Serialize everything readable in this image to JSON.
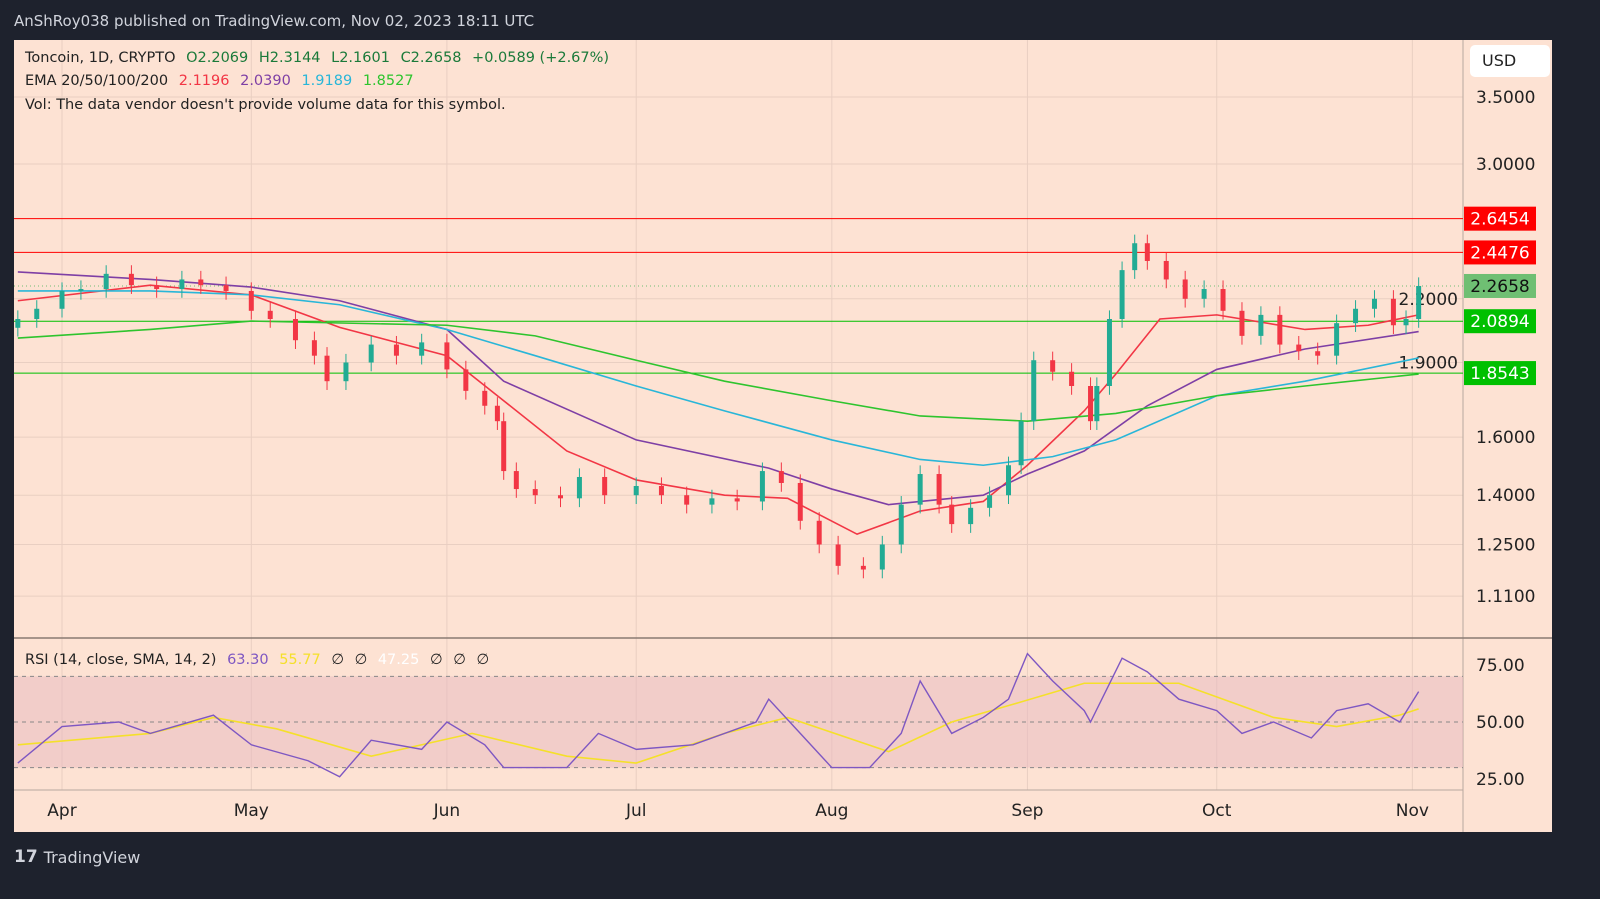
{
  "header": {
    "publisher": "AnShRoy038 published on TradingView.com, Nov 02, 2023 18:11 UTC"
  },
  "legend": {
    "symbol": "Toncoin, 1D, CRYPTO",
    "open": "O2.2069",
    "high": "H2.3144",
    "low": "L2.1601",
    "close": "C2.2658",
    "change": "+0.0589 (+2.67%)",
    "ema_label": "EMA 20/50/100/200",
    "ema20": "2.1196",
    "ema50": "2.0390",
    "ema100": "1.9189",
    "ema200": "1.8527",
    "vol": "Vol: The data vendor doesn't provide volume data for this symbol.",
    "rsi_label": "RSI (14, close, SMA, 14, 2)",
    "rsi": "63.30",
    "rsi_sma": "55.77",
    "rsi_extra1": "∅",
    "rsi_extra2": "∅",
    "rsi_extra3": "47.25",
    "rsi_extra4": "∅",
    "rsi_extra5": "∅",
    "rsi_extra6": "∅"
  },
  "currency": "USD",
  "footer": {
    "brand": "TradingView"
  },
  "colors": {
    "up": "#22ab94",
    "down": "#f23645",
    "ema20": "#f23645",
    "ema50": "#7e3fa5",
    "ema100": "#29b6d8",
    "ema200": "#2ec42e",
    "rsi": "#7e57c2",
    "rsi_sma": "#f5e02a",
    "bg": "#fde2d3"
  },
  "chart_data": {
    "type": "candlestick",
    "scale": "log",
    "grid": true,
    "y_ticks": [
      3.5,
      3.0,
      2.2,
      1.9,
      1.6,
      1.4,
      1.25,
      1.11
    ],
    "y_tick_labels": [
      "3.5000",
      "3.0000",
      "2.2000",
      "1.9000",
      "1.6000",
      "1.4000",
      "1.2500",
      "1.1100"
    ],
    "x_ticks": [
      {
        "date": "2023-04-01",
        "label": "Apr"
      },
      {
        "date": "2023-05-01",
        "label": "May"
      },
      {
        "date": "2023-06-01",
        "label": "Jun"
      },
      {
        "date": "2023-07-01",
        "label": "Jul"
      },
      {
        "date": "2023-08-01",
        "label": "Aug"
      },
      {
        "date": "2023-09-01",
        "label": "Sep"
      },
      {
        "date": "2023-10-01",
        "label": "Oct"
      },
      {
        "date": "2023-11-01",
        "label": "Nov"
      }
    ],
    "closes": [
      [
        "2023-03-25",
        2.1
      ],
      [
        "2023-03-28",
        2.15
      ],
      [
        "2023-04-01",
        2.24
      ],
      [
        "2023-04-04",
        2.25
      ],
      [
        "2023-04-08",
        2.33
      ],
      [
        "2023-04-12",
        2.27
      ],
      [
        "2023-04-16",
        2.25
      ],
      [
        "2023-04-20",
        2.3
      ],
      [
        "2023-04-23",
        2.27
      ],
      [
        "2023-04-27",
        2.24
      ],
      [
        "2023-05-01",
        2.14
      ],
      [
        "2023-05-04",
        2.1
      ],
      [
        "2023-05-08",
        2.0
      ],
      [
        "2023-05-11",
        1.93
      ],
      [
        "2023-05-13",
        1.82
      ],
      [
        "2023-05-16",
        1.9
      ],
      [
        "2023-05-20",
        1.98
      ],
      [
        "2023-05-24",
        1.93
      ],
      [
        "2023-05-28",
        1.99
      ],
      [
        "2023-06-01",
        1.87
      ],
      [
        "2023-06-04",
        1.78
      ],
      [
        "2023-06-07",
        1.72
      ],
      [
        "2023-06-09",
        1.66
      ],
      [
        "2023-06-10",
        1.48
      ],
      [
        "2023-06-12",
        1.42
      ],
      [
        "2023-06-15",
        1.4
      ],
      [
        "2023-06-19",
        1.39
      ],
      [
        "2023-06-22",
        1.46
      ],
      [
        "2023-06-26",
        1.4
      ],
      [
        "2023-07-01",
        1.43
      ],
      [
        "2023-07-05",
        1.4
      ],
      [
        "2023-07-09",
        1.37
      ],
      [
        "2023-07-13",
        1.39
      ],
      [
        "2023-07-17",
        1.38
      ],
      [
        "2023-07-21",
        1.48
      ],
      [
        "2023-07-24",
        1.44
      ],
      [
        "2023-07-27",
        1.32
      ],
      [
        "2023-07-30",
        1.25
      ],
      [
        "2023-08-02",
        1.19
      ],
      [
        "2023-08-06",
        1.18
      ],
      [
        "2023-08-09",
        1.25
      ],
      [
        "2023-08-12",
        1.37
      ],
      [
        "2023-08-15",
        1.47
      ],
      [
        "2023-08-18",
        1.37
      ],
      [
        "2023-08-20",
        1.31
      ],
      [
        "2023-08-23",
        1.36
      ],
      [
        "2023-08-26",
        1.4
      ],
      [
        "2023-08-29",
        1.5
      ],
      [
        "2023-08-31",
        1.66
      ],
      [
        "2023-09-02",
        1.91
      ],
      [
        "2023-09-05",
        1.86
      ],
      [
        "2023-09-08",
        1.8
      ],
      [
        "2023-09-11",
        1.66
      ],
      [
        "2023-09-12",
        1.8
      ],
      [
        "2023-09-14",
        2.1
      ],
      [
        "2023-09-16",
        2.35
      ],
      [
        "2023-09-18",
        2.5
      ],
      [
        "2023-09-20",
        2.4
      ],
      [
        "2023-09-23",
        2.3
      ],
      [
        "2023-09-26",
        2.2
      ],
      [
        "2023-09-29",
        2.25
      ],
      [
        "2023-10-02",
        2.14
      ],
      [
        "2023-10-05",
        2.02
      ],
      [
        "2023-10-08",
        2.12
      ],
      [
        "2023-10-11",
        1.98
      ],
      [
        "2023-10-14",
        1.95
      ],
      [
        "2023-10-17",
        1.93
      ],
      [
        "2023-10-20",
        2.08
      ],
      [
        "2023-10-23",
        2.15
      ],
      [
        "2023-10-26",
        2.2
      ],
      [
        "2023-10-29",
        2.07
      ],
      [
        "2023-10-31",
        2.1
      ],
      [
        "2023-11-02",
        2.2658
      ]
    ],
    "ema": [
      {
        "name": "EMA 20",
        "color": "#f23645",
        "points": [
          [
            "2023-03-25",
            2.19
          ],
          [
            "2023-04-15",
            2.27
          ],
          [
            "2023-05-01",
            2.22
          ],
          [
            "2023-05-15",
            2.06
          ],
          [
            "2023-06-01",
            1.93
          ],
          [
            "2023-06-10",
            1.74
          ],
          [
            "2023-06-20",
            1.55
          ],
          [
            "2023-07-01",
            1.45
          ],
          [
            "2023-07-15",
            1.4
          ],
          [
            "2023-07-25",
            1.39
          ],
          [
            "2023-08-05",
            1.28
          ],
          [
            "2023-08-15",
            1.35
          ],
          [
            "2023-08-25",
            1.38
          ],
          [
            "2023-09-01",
            1.5
          ],
          [
            "2023-09-10",
            1.7
          ],
          [
            "2023-09-15",
            1.85
          ],
          [
            "2023-09-22",
            2.1
          ],
          [
            "2023-10-01",
            2.12
          ],
          [
            "2023-10-15",
            2.05
          ],
          [
            "2023-10-25",
            2.07
          ],
          [
            "2023-11-02",
            2.12
          ]
        ]
      },
      {
        "name": "EMA 50",
        "color": "#7e3fa5",
        "points": [
          [
            "2023-03-25",
            2.34
          ],
          [
            "2023-04-15",
            2.3
          ],
          [
            "2023-05-01",
            2.26
          ],
          [
            "2023-05-15",
            2.19
          ],
          [
            "2023-06-01",
            2.05
          ],
          [
            "2023-06-10",
            1.82
          ],
          [
            "2023-07-01",
            1.59
          ],
          [
            "2023-07-22",
            1.49
          ],
          [
            "2023-08-01",
            1.42
          ],
          [
            "2023-08-10",
            1.37
          ],
          [
            "2023-08-25",
            1.4
          ],
          [
            "2023-09-01",
            1.47
          ],
          [
            "2023-09-10",
            1.55
          ],
          [
            "2023-09-20",
            1.72
          ],
          [
            "2023-10-01",
            1.87
          ],
          [
            "2023-10-15",
            1.96
          ],
          [
            "2023-11-02",
            2.04
          ]
        ]
      },
      {
        "name": "EMA 100",
        "color": "#29b6d8",
        "points": [
          [
            "2023-03-25",
            2.24
          ],
          [
            "2023-04-15",
            2.24
          ],
          [
            "2023-05-01",
            2.22
          ],
          [
            "2023-05-15",
            2.17
          ],
          [
            "2023-06-01",
            2.05
          ],
          [
            "2023-06-15",
            1.93
          ],
          [
            "2023-07-01",
            1.8
          ],
          [
            "2023-07-15",
            1.7
          ],
          [
            "2023-08-01",
            1.59
          ],
          [
            "2023-08-15",
            1.52
          ],
          [
            "2023-08-25",
            1.5
          ],
          [
            "2023-09-05",
            1.53
          ],
          [
            "2023-09-15",
            1.59
          ],
          [
            "2023-10-01",
            1.76
          ],
          [
            "2023-10-15",
            1.82
          ],
          [
            "2023-11-02",
            1.92
          ]
        ]
      },
      {
        "name": "EMA 200",
        "color": "#2ec42e",
        "points": [
          [
            "2023-03-25",
            2.01
          ],
          [
            "2023-04-15",
            2.05
          ],
          [
            "2023-05-01",
            2.09
          ],
          [
            "2023-06-01",
            2.07
          ],
          [
            "2023-06-15",
            2.02
          ],
          [
            "2023-07-01",
            1.91
          ],
          [
            "2023-07-15",
            1.82
          ],
          [
            "2023-08-01",
            1.74
          ],
          [
            "2023-08-15",
            1.68
          ],
          [
            "2023-09-01",
            1.66
          ],
          [
            "2023-09-15",
            1.69
          ],
          [
            "2023-10-01",
            1.76
          ],
          [
            "2023-10-15",
            1.8
          ],
          [
            "2023-11-02",
            1.85
          ]
        ]
      }
    ],
    "levels": [
      {
        "value": 2.6454,
        "label": "2.6454",
        "color": "#ff0000"
      },
      {
        "value": 2.4476,
        "label": "2.4476",
        "color": "#ff0000"
      },
      {
        "value": 2.0894,
        "label": "2.0894",
        "color": "#00c000"
      },
      {
        "value": 1.8543,
        "label": "1.8543",
        "color": "#00c000"
      }
    ],
    "last_price": {
      "value": 2.2658,
      "label": "2.2658",
      "color": "#6fbf73"
    },
    "rsi": {
      "ylim": [
        25,
        75
      ],
      "band": [
        30,
        70
      ],
      "mid": 50,
      "tick_labels": [
        "75.00",
        "50.00",
        "25.00"
      ],
      "ticks": [
        75,
        50,
        25
      ],
      "values": [
        [
          "2023-03-25",
          32
        ],
        [
          "2023-04-01",
          48
        ],
        [
          "2023-04-10",
          50
        ],
        [
          "2023-04-15",
          45
        ],
        [
          "2023-04-25",
          53
        ],
        [
          "2023-05-01",
          40
        ],
        [
          "2023-05-10",
          33
        ],
        [
          "2023-05-15",
          26
        ],
        [
          "2023-05-20",
          42
        ],
        [
          "2023-05-28",
          38
        ],
        [
          "2023-06-01",
          50
        ],
        [
          "2023-06-07",
          40
        ],
        [
          "2023-06-10",
          30
        ],
        [
          "2023-06-20",
          30
        ],
        [
          "2023-06-25",
          45
        ],
        [
          "2023-07-01",
          38
        ],
        [
          "2023-07-10",
          40
        ],
        [
          "2023-07-20",
          50
        ],
        [
          "2023-07-22",
          60
        ],
        [
          "2023-07-27",
          45
        ],
        [
          "2023-08-01",
          30
        ],
        [
          "2023-08-07",
          30
        ],
        [
          "2023-08-12",
          45
        ],
        [
          "2023-08-15",
          68
        ],
        [
          "2023-08-20",
          45
        ],
        [
          "2023-08-25",
          52
        ],
        [
          "2023-08-29",
          60
        ],
        [
          "2023-09-01",
          80
        ],
        [
          "2023-09-05",
          68
        ],
        [
          "2023-09-10",
          55
        ],
        [
          "2023-09-11",
          50
        ],
        [
          "2023-09-16",
          78
        ],
        [
          "2023-09-20",
          72
        ],
        [
          "2023-09-25",
          60
        ],
        [
          "2023-10-01",
          55
        ],
        [
          "2023-10-05",
          45
        ],
        [
          "2023-10-10",
          50
        ],
        [
          "2023-10-16",
          43
        ],
        [
          "2023-10-20",
          55
        ],
        [
          "2023-10-25",
          58
        ],
        [
          "2023-10-30",
          50
        ],
        [
          "2023-11-02",
          63.3
        ]
      ],
      "sma": [
        [
          "2023-03-25",
          40
        ],
        [
          "2023-04-15",
          45
        ],
        [
          "2023-04-25",
          52
        ],
        [
          "2023-05-05",
          47
        ],
        [
          "2023-05-20",
          35
        ],
        [
          "2023-06-05",
          45
        ],
        [
          "2023-06-20",
          35
        ],
        [
          "2023-07-01",
          32
        ],
        [
          "2023-07-15",
          45
        ],
        [
          "2023-07-25",
          52
        ],
        [
          "2023-08-10",
          37
        ],
        [
          "2023-08-20",
          50
        ],
        [
          "2023-08-30",
          58
        ],
        [
          "2023-09-10",
          67
        ],
        [
          "2023-09-25",
          67
        ],
        [
          "2023-10-10",
          52
        ],
        [
          "2023-10-20",
          48
        ],
        [
          "2023-10-30",
          53
        ],
        [
          "2023-11-02",
          55.77
        ]
      ]
    }
  }
}
